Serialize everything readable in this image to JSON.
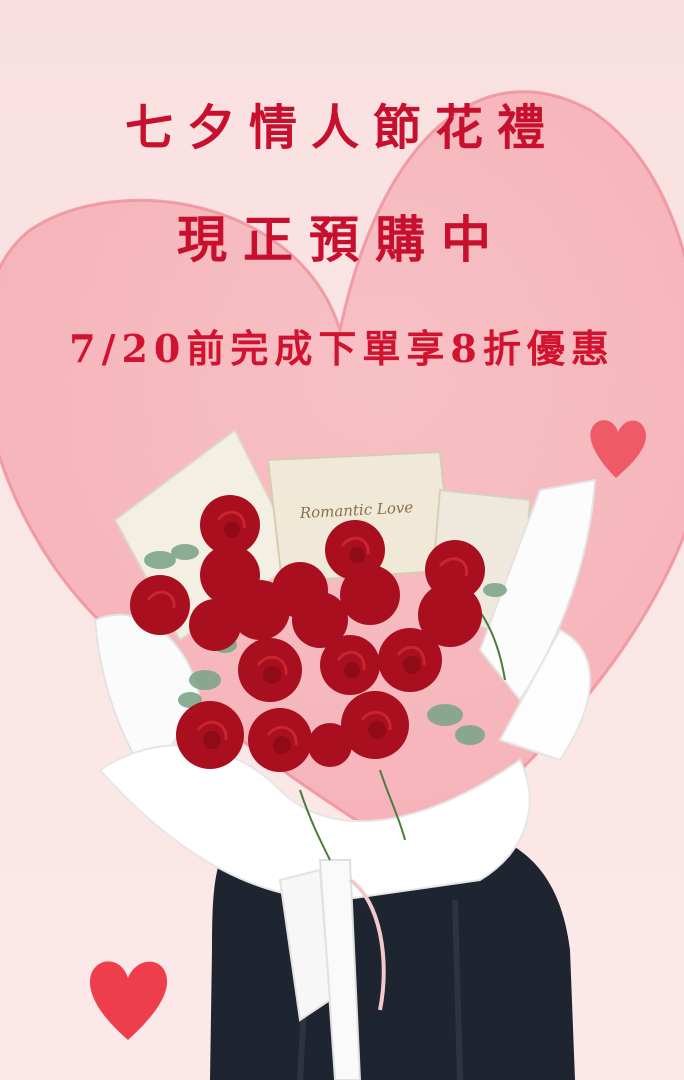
{
  "poster": {
    "line1": "七夕情人節花禮",
    "line2": "現正預購中",
    "line3": "7/20前完成下單享8折優惠"
  },
  "card_text": "Romantic Love",
  "colors": {
    "background": "#fbe4e4",
    "heart": "#f4a7ad",
    "text": "#c8102e",
    "rose": "#b3121f"
  }
}
